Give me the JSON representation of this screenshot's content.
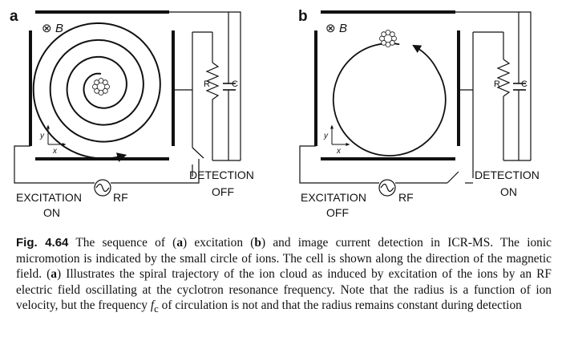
{
  "panels": [
    {
      "letter": "a",
      "field_symbol": "⊗",
      "field_label": "B",
      "axis_y": "y",
      "axis_x": "x",
      "resistor_label": "R",
      "capacitor_label": "C",
      "detection_label": "DETECTION",
      "detection_state": "OFF",
      "excitation_label": "EXCITATION",
      "excitation_state": "ON",
      "rf_label": "RF",
      "trajectory": "spiral"
    },
    {
      "letter": "b",
      "field_symbol": "⊗",
      "field_label": "B",
      "axis_y": "y",
      "axis_x": "x",
      "resistor_label": "R",
      "capacitor_label": "C",
      "detection_label": "DETECTION",
      "detection_state": "ON",
      "excitation_label": "EXCITATION",
      "excitation_state": "OFF",
      "rf_label": "RF",
      "trajectory": "circle"
    }
  ],
  "caption": {
    "fig_number": "Fig. 4.64",
    "p1": " The sequence of (",
    "a1": "a",
    "p2": ") excitation (",
    "b1": "b",
    "p3": ") and image current detection in ICR-MS. The ionic micromotion is indicated by the small circle of ions. The cell is shown along the direction of the magnetic field. (",
    "a2": "a",
    "p4": ") Illustrates the spiral trajectory of the ion cloud as induced by excitation of the ions by an RF electric field oscillating at the cyclotron resonance frequency. Note that the radius is a function of ion velocity, but the frequency ",
    "f": "f",
    "sub": "c",
    "p5": " of circulation is not and that the radius remains constant during detection"
  }
}
